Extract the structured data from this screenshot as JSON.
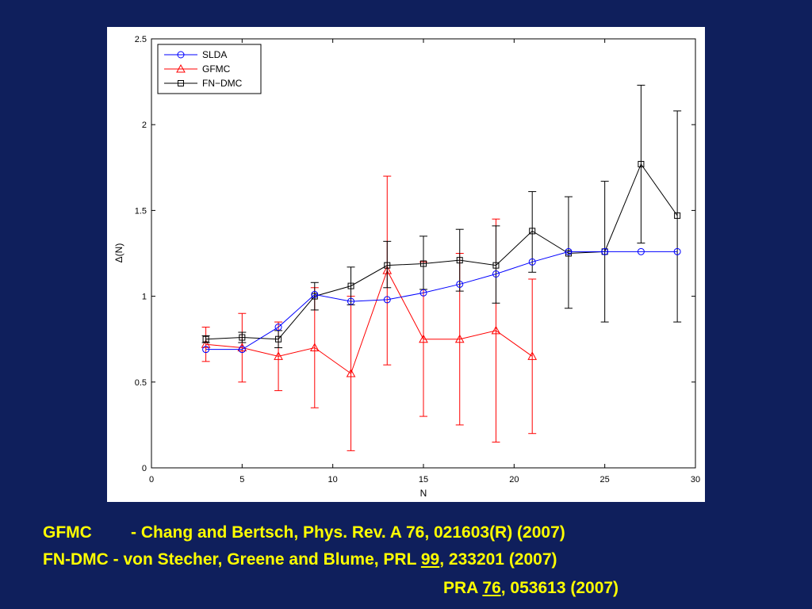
{
  "chart_data": {
    "type": "line",
    "title": "",
    "xlabel": "N",
    "ylabel": "Δ(N)",
    "xlim": [
      0,
      30
    ],
    "ylim": [
      0,
      2.5
    ],
    "xticks": [
      "0",
      "5",
      "10",
      "15",
      "20",
      "25",
      "30"
    ],
    "yticks": [
      "0",
      "0.5",
      "1",
      "1.5",
      "2",
      "2.5"
    ],
    "grid": false,
    "legend_position": "top-left",
    "series": [
      {
        "name": "SLDA",
        "color": "#0000ff",
        "marker": "circle",
        "x": [
          3,
          5,
          7,
          9,
          11,
          13,
          15,
          17,
          19,
          21,
          23,
          25,
          27,
          29
        ],
        "y": [
          0.69,
          0.69,
          0.82,
          1.01,
          0.97,
          0.98,
          1.02,
          1.07,
          1.13,
          1.2,
          1.26,
          1.26,
          1.26,
          1.26
        ]
      },
      {
        "name": "GFMC",
        "color": "#ff0000",
        "marker": "triangle",
        "x": [
          3,
          5,
          7,
          9,
          11,
          13,
          15,
          17,
          19,
          21
        ],
        "y": [
          0.72,
          0.7,
          0.65,
          0.7,
          0.55,
          1.15,
          0.75,
          0.75,
          0.8,
          0.65
        ],
        "err_low": [
          0.62,
          0.5,
          0.45,
          0.35,
          0.1,
          0.6,
          0.3,
          0.25,
          0.15,
          0.2
        ],
        "err_high": [
          0.82,
          0.9,
          0.85,
          1.05,
          1.0,
          1.7,
          1.2,
          1.25,
          1.45,
          1.1
        ]
      },
      {
        "name": "FN−DMC",
        "color": "#000000",
        "marker": "square",
        "x": [
          3,
          5,
          7,
          9,
          11,
          13,
          15,
          17,
          19,
          21,
          23,
          25,
          27,
          29
        ],
        "y": [
          0.75,
          0.76,
          0.75,
          1.0,
          1.06,
          1.18,
          1.19,
          1.21,
          1.18,
          1.38,
          1.25,
          1.26,
          1.77,
          1.47
        ],
        "err_low": [
          0.73,
          0.73,
          0.7,
          0.92,
          0.95,
          1.05,
          1.04,
          1.03,
          0.96,
          1.14,
          0.93,
          0.85,
          1.31,
          0.85
        ],
        "err_high": [
          0.77,
          0.79,
          0.8,
          1.08,
          1.17,
          1.32,
          1.35,
          1.39,
          1.41,
          1.61,
          1.58,
          1.67,
          2.23,
          2.08
        ]
      }
    ]
  },
  "references": {
    "line1_tag": "GFMC",
    "line1_text": "- Chang and Bertsch, Phys. Rev. A 76, 021603(R) (2007)",
    "line2_a": "FN-DMC - von Stecher, Greene and Blume, PRL ",
    "line2_vol": "99",
    "line2_b": ", 233201 (2007)",
    "line3_a": "PRA ",
    "line3_vol": "76",
    "line3_b": ", 053613 (2007)"
  }
}
